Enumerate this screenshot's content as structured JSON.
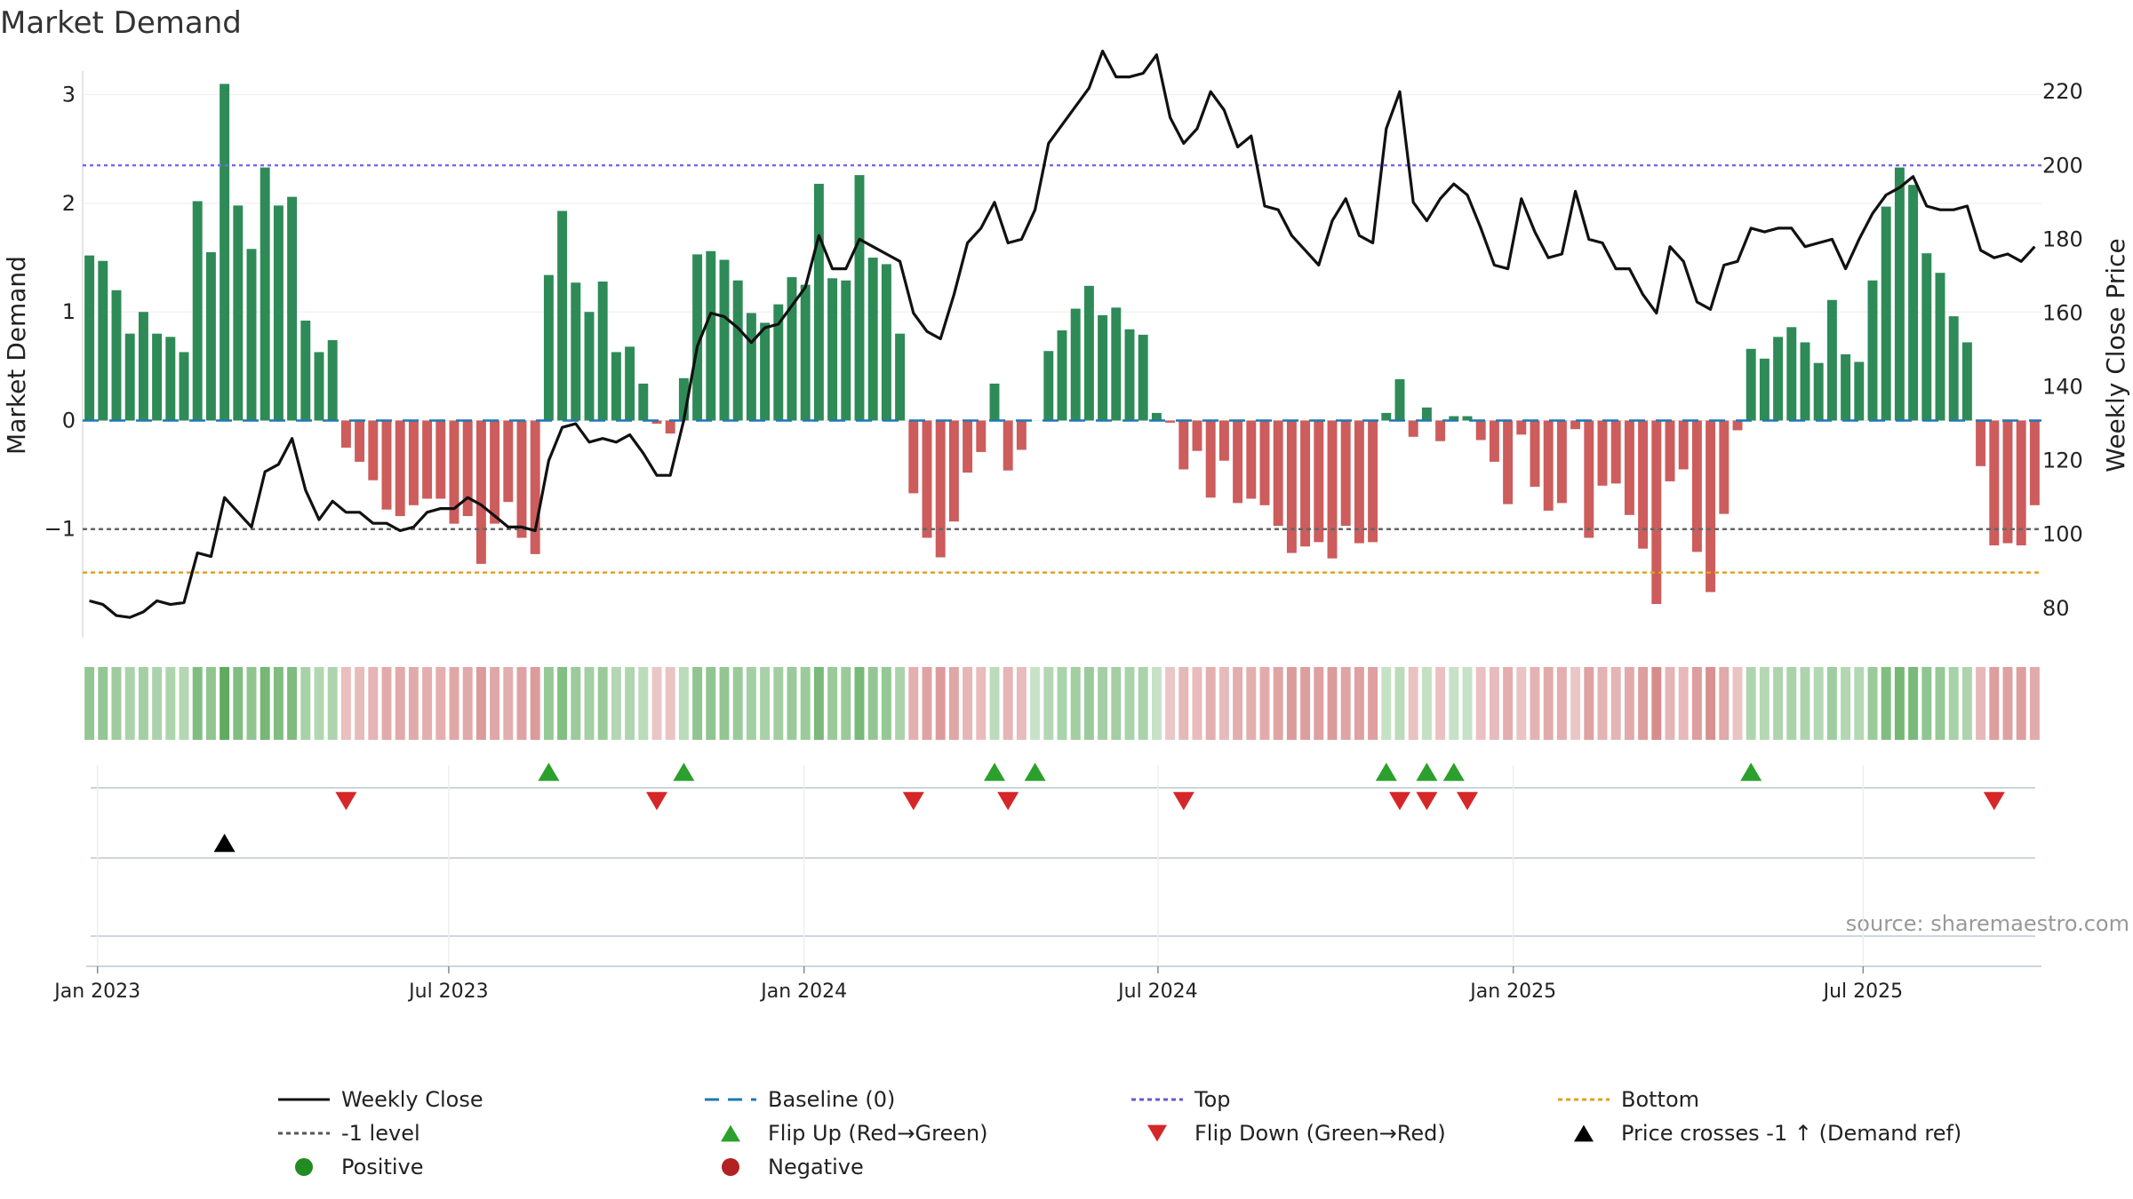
{
  "chart_data": {
    "type": "bar",
    "title": "Market Demand",
    "ylabel_left": "Market Demand",
    "ylabel_right": "Weekly Close Price",
    "source": "source: sharemaestro.com",
    "ylim_left": [
      -2.0,
      3.3
    ],
    "ylim_right": [
      72,
      228
    ],
    "yticks_left": [
      -1,
      0,
      1,
      2,
      3
    ],
    "yticks_left_labels": [
      "−1",
      "0",
      "1",
      "2",
      "3"
    ],
    "yticks_right": [
      80,
      100,
      120,
      140,
      160,
      180,
      200,
      220
    ],
    "xticks": [
      "Jan 2023",
      "Jul 2023",
      "Jan 2024",
      "Jul 2024",
      "Jan 2025",
      "Jul 2025"
    ],
    "xtick_weeks": [
      0.6,
      26.6,
      52.9,
      79.1,
      105.4,
      131.3
    ],
    "reference_lines": {
      "top": 2.35,
      "minus_one": -1,
      "bottom": -1.4,
      "baseline": 0
    },
    "demand": [
      1.52,
      1.47,
      1.2,
      0.8,
      1.0,
      0.8,
      0.77,
      0.63,
      2.02,
      1.55,
      3.1,
      1.98,
      1.58,
      2.33,
      1.98,
      2.06,
      0.92,
      0.63,
      0.74,
      -0.25,
      -0.38,
      -0.55,
      -0.82,
      -0.88,
      -0.78,
      -0.72,
      -0.72,
      -0.95,
      -0.88,
      -1.32,
      -0.95,
      -0.75,
      -1.08,
      -1.23,
      1.34,
      1.93,
      1.27,
      1.0,
      1.28,
      0.63,
      0.68,
      0.34,
      -0.03,
      -0.12,
      0.39,
      1.53,
      1.56,
      1.48,
      1.29,
      0.99,
      0.9,
      1.07,
      1.32,
      1.25,
      2.18,
      1.31,
      1.29,
      2.26,
      1.5,
      1.44,
      0.8,
      -0.67,
      -1.08,
      -1.26,
      -0.93,
      -0.48,
      -0.29,
      0.34,
      -0.46,
      -0.27,
      0.0,
      0.64,
      0.83,
      1.03,
      1.24,
      0.97,
      1.04,
      0.84,
      0.79,
      0.07,
      -0.02,
      -0.45,
      -0.28,
      -0.71,
      -0.37,
      -0.76,
      -0.72,
      -0.78,
      -0.97,
      -1.22,
      -1.16,
      -1.12,
      -1.27,
      -0.97,
      -1.13,
      -1.12,
      0.07,
      0.38,
      -0.15,
      0.12,
      -0.19,
      0.04,
      0.04,
      -0.18,
      -0.38,
      -0.77,
      -0.13,
      -0.61,
      -0.83,
      -0.76,
      -0.08,
      -1.08,
      -0.6,
      -0.58,
      -0.87,
      -1.18,
      -1.69,
      -0.56,
      -0.45,
      -1.21,
      -1.58,
      -0.86,
      -0.09,
      0.66,
      0.57,
      0.77,
      0.86,
      0.72,
      0.53,
      1.11,
      0.61,
      0.54,
      1.29,
      1.97,
      2.33,
      2.17,
      1.54,
      1.36,
      0.96,
      0.72,
      -0.42,
      -1.15,
      -1.13,
      -1.15,
      -0.78
    ],
    "weekly_close": [
      82,
      81,
      78,
      77.5,
      79,
      82,
      81,
      81.5,
      95,
      94,
      110,
      106,
      102,
      117,
      119,
      126,
      112,
      104,
      109,
      106,
      106,
      103,
      103,
      101,
      102,
      106,
      107,
      107,
      110,
      108,
      105,
      102,
      102,
      101,
      120,
      129,
      130,
      125,
      126,
      125,
      127,
      122,
      116,
      116,
      131,
      151,
      160,
      159,
      156,
      152,
      156,
      157,
      162,
      167,
      181,
      172,
      172,
      180,
      178,
      176,
      174,
      160,
      155,
      153,
      165,
      179,
      183,
      190,
      179,
      180,
      188,
      206,
      211,
      216,
      221,
      231,
      224,
      224,
      225,
      230,
      213,
      206,
      210,
      220,
      215,
      205,
      208,
      189,
      188,
      181,
      177,
      173,
      185,
      191,
      181,
      179,
      210,
      220,
      190,
      185,
      191,
      195,
      192,
      183,
      173,
      172,
      191,
      182,
      175,
      176,
      193,
      180,
      179,
      172,
      172,
      165,
      160,
      178,
      174,
      163,
      161,
      173,
      174,
      183,
      182,
      183,
      183,
      178,
      179,
      180,
      172,
      180,
      187,
      192,
      194,
      197,
      189,
      188,
      188,
      189,
      177,
      175,
      176,
      174,
      178
    ],
    "flip_up_weeks": [
      34,
      44,
      67,
      70,
      96,
      99,
      101,
      123
    ],
    "flip_down_weeks": [
      19,
      42,
      61,
      68,
      81,
      97,
      99,
      102,
      141
    ],
    "price_cross_weeks": [
      10
    ],
    "legend": [
      {
        "label": "Weekly Close",
        "marker": "line-solid",
        "color": "#111111"
      },
      {
        "label": "Baseline (0)",
        "marker": "line-dashed",
        "color": "#1f77b4"
      },
      {
        "label": "Top",
        "marker": "line-dotted",
        "color": "#6a5acd"
      },
      {
        "label": "Bottom",
        "marker": "line-dotted",
        "color": "#e0a020"
      },
      {
        "label": "-1 level",
        "marker": "line-dotted",
        "color": "#555555"
      },
      {
        "label": "Flip Up (Red→Green)",
        "marker": "triangle-up",
        "color": "#2ca02c"
      },
      {
        "label": "Flip Down (Green→Red)",
        "marker": "triangle-down",
        "color": "#d62728"
      },
      {
        "label": "Price crosses -1 ↑ (Demand ref)",
        "marker": "triangle-up",
        "color": "#000000"
      },
      {
        "label": "Positive",
        "marker": "circle",
        "color": "#228b22"
      },
      {
        "label": "Negative",
        "marker": "circle",
        "color": "#b22222"
      }
    ]
  },
  "colors": {
    "positive_bar": "#2e8b57",
    "negative_bar": "#cd5c5c",
    "price_line": "#111111",
    "top_line": "#7b68ee",
    "bottom_line": "#e0a020",
    "minus_one_line": "#666666",
    "baseline": "#1f77b4",
    "flip_up": "#2ca02c",
    "flip_down": "#d62728",
    "price_cross": "#000000"
  }
}
